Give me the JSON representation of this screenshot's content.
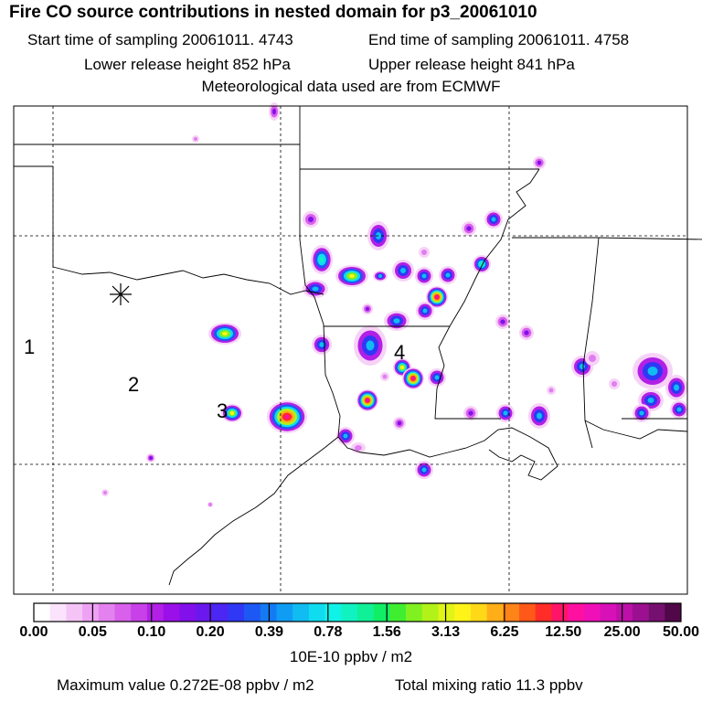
{
  "header": {
    "title": "Fire CO source contributions in nested domain for p3_20061010",
    "start_time": "Start time of sampling 20061011.  4743",
    "end_time": "End time of sampling 20061011.  4758",
    "lower_release": "Lower release height  852 hPa",
    "upper_release": "Upper release height  841 hPa",
    "met_data": "Meteorological data used are from ECMWF"
  },
  "map": {
    "source_marker": "asterisk",
    "region_labels": [
      "1",
      "2",
      "3",
      "4"
    ]
  },
  "colorbar": {
    "tick_labels": [
      "0.00",
      "0.05",
      "0.10",
      "0.20",
      "0.39",
      "0.78",
      "1.56",
      "3.13",
      "6.25",
      "12.50",
      "25.00",
      "50.00"
    ],
    "units": "10E-10 ppbv / m2",
    "colors": [
      "#ffffff",
      "#fbe3fb",
      "#f5c4f7",
      "#eea2f3",
      "#e382ee",
      "#d860eb",
      "#c840e7",
      "#b21fe6",
      "#9a10e8",
      "#8210ea",
      "#6a18ee",
      "#4c26f2",
      "#2f38f4",
      "#1d58f4",
      "#147af4",
      "#109cf4",
      "#10bcf2",
      "#10dcf0",
      "#10f2e8",
      "#10f2c0",
      "#10f096",
      "#10ee66",
      "#40ee30",
      "#80f020",
      "#b2f218",
      "#e0f418",
      "#fff418",
      "#ffd818",
      "#ffae18",
      "#ff8418",
      "#ff5818",
      "#ff2c28",
      "#ff1468",
      "#ff10a0",
      "#f010b8",
      "#d810b8",
      "#bc10a8",
      "#9a1090",
      "#761070",
      "#500848"
    ]
  },
  "footer": {
    "max_value": "Maximum value  0.272E-08 ppbv / m2",
    "total_mixing": "Total mixing ratio       11.3 ppbv"
  }
}
